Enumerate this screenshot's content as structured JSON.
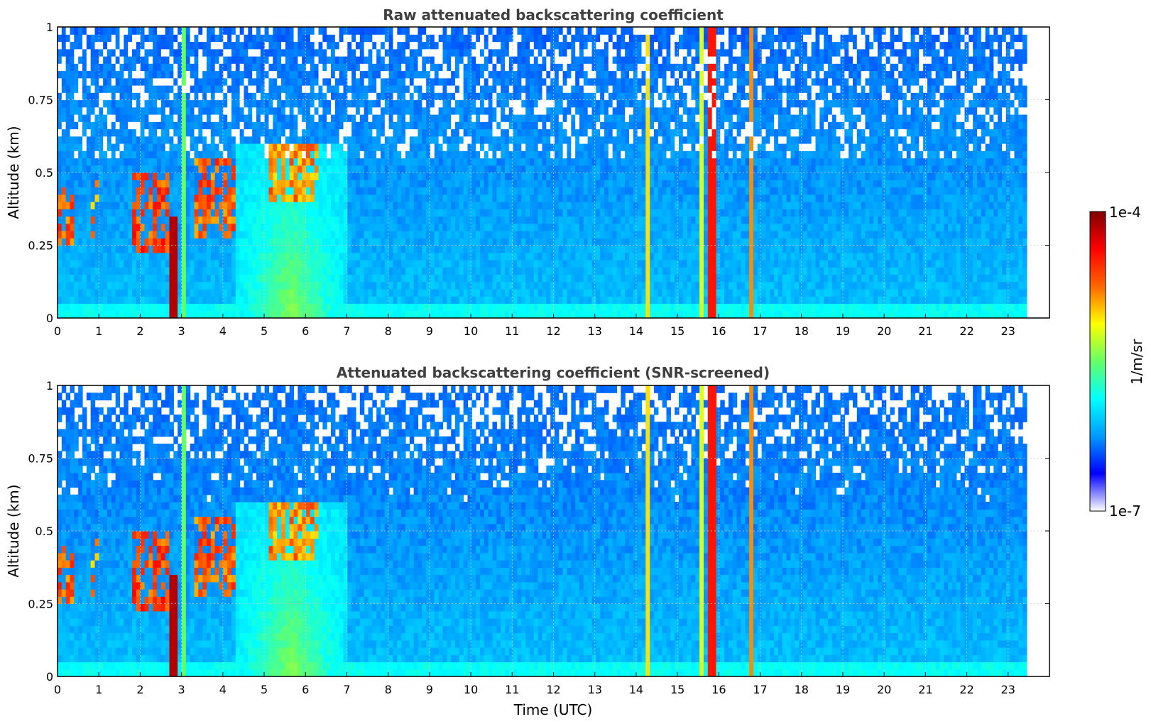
{
  "chart_data": [
    {
      "type": "heatmap",
      "title": "Raw attenuated backscattering coefficient",
      "xlabel": "",
      "ylabel": "Altitude (km)",
      "xlim": [
        0,
        24
      ],
      "ylim": [
        0,
        1
      ],
      "x_ticks": [
        0,
        1,
        2,
        3,
        4,
        5,
        6,
        7,
        8,
        9,
        10,
        11,
        12,
        13,
        14,
        15,
        16,
        17,
        18,
        19,
        20,
        21,
        22,
        23
      ],
      "y_ticks": [
        0,
        0.25,
        0.5,
        0.75,
        1
      ],
      "y_tick_labels": [
        "0",
        "0.25",
        "0.5",
        "0.75",
        "1"
      ],
      "data_end_time": 23.45,
      "grid": true,
      "color_scale": "log",
      "screened": false
    },
    {
      "type": "heatmap",
      "title": "Attenuated backscattering coefficient (SNR-screened)",
      "xlabel": "Time (UTC)",
      "ylabel": "Altitude (km)",
      "xlim": [
        0,
        24
      ],
      "ylim": [
        0,
        1
      ],
      "x_ticks": [
        0,
        1,
        2,
        3,
        4,
        5,
        6,
        7,
        8,
        9,
        10,
        11,
        12,
        13,
        14,
        15,
        16,
        17,
        18,
        19,
        20,
        21,
        22,
        23
      ],
      "y_ticks": [
        0,
        0.25,
        0.5,
        0.75,
        1
      ],
      "y_tick_labels": [
        "0",
        "0.25",
        "0.5",
        "0.75",
        "1"
      ],
      "data_end_time": 23.45,
      "grid": true,
      "color_scale": "log",
      "screened": true
    }
  ],
  "colorbar": {
    "label": "1/m/sr",
    "max_label": "1e-4",
    "min_label": "1e-7",
    "colormap": [
      "#ffffff",
      "#0000ff",
      "#0099ff",
      "#00ffff",
      "#66ff66",
      "#ffff00",
      "#ff6600",
      "#ff0000",
      "#800000"
    ]
  },
  "features": {
    "vertical_bands": [
      {
        "time": 2.8,
        "width": 0.12,
        "level": 0.95,
        "top": 0.35
      },
      {
        "time": 3.05,
        "width": 0.08,
        "level": 0.5,
        "top": 1.0
      },
      {
        "time": 14.3,
        "width": 0.07,
        "level": 0.65,
        "top": 1.0
      },
      {
        "time": 15.6,
        "width": 0.12,
        "level": 0.6,
        "top": 1.0
      },
      {
        "time": 15.85,
        "width": 0.14,
        "level": 0.85,
        "top": 1.0
      },
      {
        "time": 16.75,
        "width": 0.11,
        "level": 0.72,
        "top": 1.0
      }
    ],
    "cloud_patches": [
      {
        "t0": 0.0,
        "t1": 0.4,
        "z0": 0.25,
        "z1": 0.45,
        "level": 0.85
      },
      {
        "t0": 0.8,
        "t1": 1.0,
        "z0": 0.28,
        "z1": 0.5,
        "level": 0.8
      },
      {
        "t0": 1.8,
        "t1": 2.7,
        "z0": 0.22,
        "z1": 0.5,
        "level": 0.88
      },
      {
        "t0": 3.3,
        "t1": 4.3,
        "z0": 0.28,
        "z1": 0.55,
        "level": 0.85
      },
      {
        "t0": 5.0,
        "t1": 6.3,
        "z0": 0.4,
        "z1": 0.6,
        "level": 0.8
      }
    ],
    "haze_patch": {
      "t0": 4.3,
      "t1": 7.0,
      "z0": 0.0,
      "z1": 0.6,
      "level": 0.5
    }
  }
}
